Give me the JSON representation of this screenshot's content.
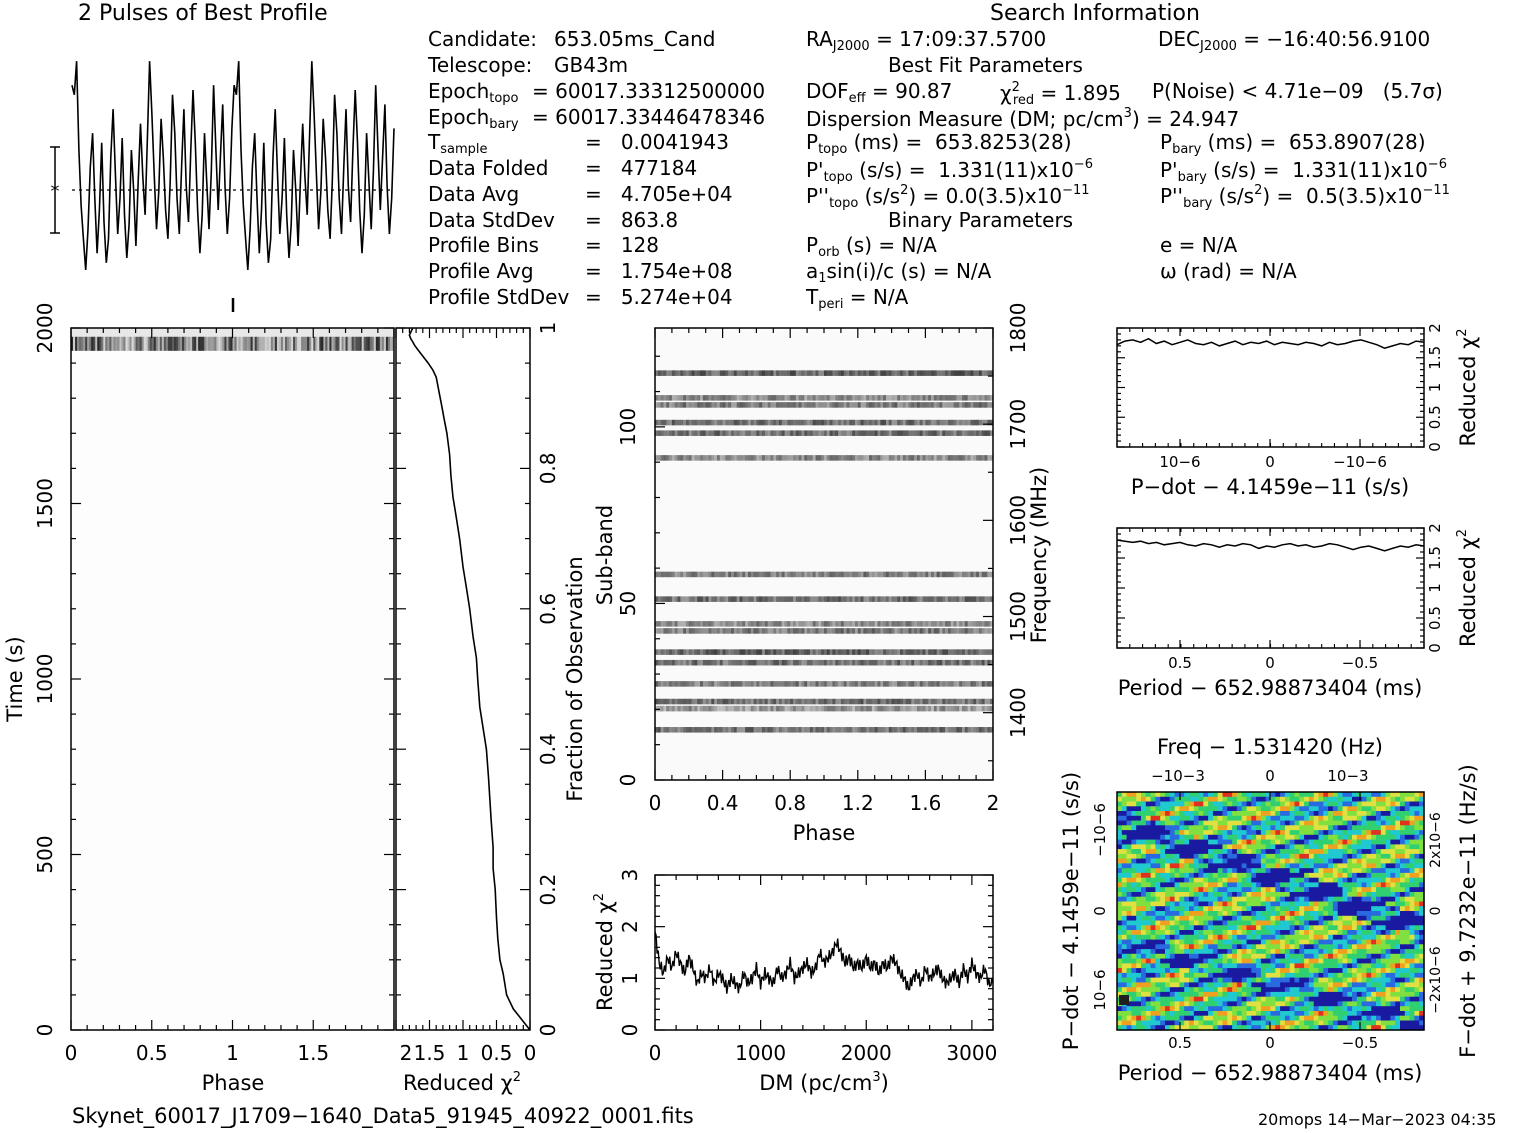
{
  "header": {
    "profile_title": "2 Pulses of Best Profile",
    "search_title": "Search Information"
  },
  "candidate_info": [
    {
      "label": "Candidate:",
      "value": "653.05ms_Cand"
    },
    {
      "label": "Telescope:",
      "value": "GB43m"
    },
    {
      "label": "Epoch",
      "sub": "topo",
      "value": "= 60017.33312500000"
    },
    {
      "label": "Epoch",
      "sub": "bary",
      "value": "= 60017.33446478346"
    },
    {
      "label": "T",
      "sub": "sample",
      "value": "=   0.0041943"
    },
    {
      "label": "Data Folded",
      "value": "=   477184"
    },
    {
      "label": "Data Avg",
      "value": "=   4.705e+04"
    },
    {
      "label": "Data StdDev",
      "value": "=   863.8"
    },
    {
      "label": "Profile Bins",
      "value": "=   128"
    },
    {
      "label": "Profile Avg",
      "value": "=   1.754e+08"
    },
    {
      "label": "Profile StdDev",
      "value": "=   5.274e+04"
    }
  ],
  "search_info": {
    "ra_label": "RA",
    "ra_sub": "J2000",
    "ra_value": "= 17:09:37.5700",
    "dec_label": "DEC",
    "dec_sub": "J2000",
    "dec_value": "= −16:40:56.9100",
    "best_fit_title": "Best Fit Parameters",
    "dof_label": "DOF",
    "dof_sub": "eff",
    "dof_value": "= 90.87",
    "chi_label": "χ",
    "chi_sup": "2",
    "chi_sub": "red",
    "chi_value": "= 1.895",
    "pnoise": "P(Noise) < 4.71e−09   (5.7σ)",
    "dm_text": "Dispersion Measure (DM; pc/cm",
    "dm_sup": "3",
    "dm_value": ") = 24.947",
    "ptopo_label": "P",
    "ptopo_sub": "topo",
    "ptopo_value": " (ms) =  653.8253(28)",
    "pbary_label": "P",
    "pbary_sub": "bary",
    "pbary_value": " (ms) =  653.8907(28)",
    "pdtopo_label": "P'",
    "pdtopo_sub": "topo",
    "pdtopo_value": " (s/s) =  1.331(11)x10",
    "pdtopo_exp": "−6",
    "pdbary_label": "P'",
    "pdbary_sub": "bary",
    "pdbary_value": " (s/s) =  1.331(11)x10",
    "pdbary_exp": "−6",
    "pddtopo_label": "P''",
    "pddtopo_sub": "topo",
    "pddtopo_value": " (s/s",
    "pddtopo_sup": "2",
    "pddtopo_value2": ") = 0.0(3.5)x10",
    "pddtopo_exp": "−11",
    "pddbary_label": "P''",
    "pddbary_sub": "bary",
    "pddbary_value": " (s/s",
    "pddbary_sup": "2",
    "pddbary_value2": ") =  0.5(3.5)x10",
    "pddbary_exp": "−11",
    "binary_title": "Binary Parameters",
    "porb_label": "P",
    "porb_sub": "orb",
    "porb_value": " (s) = N/A",
    "a1_label": "a",
    "a1_sub": "1",
    "a1_value": "sin(i)/c (s) = N/A",
    "tperi_label": "T",
    "tperi_sub": "peri",
    "tperi_value": " = N/A",
    "e_value": "e = N/A",
    "omega_value": "ω (rad) = N/A"
  },
  "footer": {
    "filename": "Skynet_60017_J1709−1640_Data5_91945_40922_0001.fits",
    "stamp": "20mops 14−Mar−2023 04:35"
  },
  "colors": {
    "line": "#000000",
    "background": "#ffffff"
  },
  "chart_data": [
    {
      "type": "line",
      "title": "2 Pulses of Best Profile",
      "x_range": [
        0,
        2
      ],
      "y_errorbar": true,
      "mean_line": "dotted",
      "y": [
        0.82,
        0.78,
        0.92,
        0.55,
        0.32,
        0.18,
        0.05,
        0.22,
        0.48,
        0.62,
        0.35,
        0.12,
        0.3,
        0.58,
        0.25,
        0.08,
        0.18,
        0.52,
        0.72,
        0.45,
        0.2,
        0.35,
        0.6,
        0.28,
        0.1,
        0.24,
        0.55,
        0.38,
        0.15,
        0.42,
        0.66,
        0.44,
        0.28,
        0.6,
        0.92,
        0.7,
        0.45,
        0.22,
        0.38,
        0.68,
        0.52,
        0.3,
        0.18,
        0.42,
        0.78,
        0.62,
        0.35,
        0.2,
        0.48,
        0.72,
        0.4,
        0.25,
        0.55,
        0.8,
        0.58,
        0.3,
        0.12,
        0.28,
        0.62,
        0.42,
        0.22,
        0.46,
        0.82,
        0.55,
        0.3,
        0.52,
        0.74,
        0.4,
        0.2,
        0.35,
        0.64,
        0.82,
        0.78,
        0.92,
        0.55,
        0.32,
        0.18,
        0.05,
        0.22,
        0.48,
        0.62,
        0.35,
        0.12,
        0.3,
        0.58,
        0.25,
        0.08,
        0.18,
        0.52,
        0.72,
        0.45,
        0.2,
        0.35,
        0.6,
        0.28,
        0.1,
        0.24,
        0.55,
        0.38,
        0.15,
        0.42,
        0.66,
        0.44,
        0.28,
        0.6,
        0.92,
        0.7,
        0.45,
        0.22,
        0.38,
        0.68,
        0.52,
        0.3,
        0.18,
        0.42,
        0.78,
        0.62,
        0.35,
        0.2,
        0.48,
        0.72,
        0.4,
        0.25,
        0.55,
        0.8,
        0.58,
        0.3,
        0.12,
        0.28,
        0.62,
        0.42,
        0.22,
        0.46,
        0.82,
        0.55,
        0.3,
        0.52,
        0.74,
        0.4,
        0.2,
        0.35,
        0.64
      ]
    },
    {
      "type": "heatmap",
      "xlabel": "Phase",
      "ylabel": "Time (s)",
      "xlim": [
        0,
        2
      ],
      "ylim": [
        0,
        2000
      ],
      "xticks": [
        "0",
        "0.5",
        "1",
        "1.5"
      ],
      "yticks": [
        "0",
        "500",
        "1000",
        "1500",
        "2000"
      ],
      "bright_band_time_s": [
        1940,
        2000
      ]
    },
    {
      "type": "line",
      "xlabel": "Reduced χ",
      "xlabel_sup": "2",
      "ylabel": "Fraction of Observation",
      "xticks": [
        "2",
        "1.5",
        "1",
        "0.5",
        "0"
      ],
      "yticks": [
        "0",
        "0.2",
        "0.4",
        "0.6",
        "0.8",
        "1"
      ],
      "x_range": [
        2,
        0
      ],
      "chi2": [
        0.0,
        0.25,
        0.35,
        0.4,
        0.45,
        0.48,
        0.5,
        0.52,
        0.55,
        0.55,
        0.58,
        0.6,
        0.62,
        0.65,
        0.7,
        0.75,
        0.78,
        0.8,
        0.85,
        0.9,
        0.95,
        1.0,
        1.05,
        1.1,
        1.15,
        1.18,
        1.2,
        1.24,
        1.28,
        1.32,
        1.36,
        1.4,
        1.45,
        1.52,
        1.6,
        1.68,
        1.72,
        1.75,
        1.78,
        1.8,
        1.75
      ],
      "fraction": [
        0.0,
        0.03,
        0.05,
        0.08,
        0.1,
        0.13,
        0.16,
        0.2,
        0.23,
        0.26,
        0.3,
        0.33,
        0.36,
        0.4,
        0.43,
        0.46,
        0.5,
        0.53,
        0.56,
        0.6,
        0.63,
        0.66,
        0.7,
        0.73,
        0.76,
        0.79,
        0.82,
        0.85,
        0.87,
        0.89,
        0.91,
        0.93,
        0.94,
        0.95,
        0.96,
        0.97,
        0.975,
        0.98,
        0.985,
        0.99,
        1.0
      ]
    },
    {
      "type": "heatmap",
      "xlabel": "Phase",
      "ylabel": "Sub-band",
      "y2label": "Frequency (MHz)",
      "xlim": [
        0,
        2
      ],
      "ylim": [
        0,
        128
      ],
      "xticks": [
        "0",
        "0.4",
        "0.8",
        "1.2",
        "1.6",
        "2"
      ],
      "yticks": [
        "0",
        "50",
        "100"
      ],
      "y2ticks": [
        "1400",
        "1500",
        "1600",
        "1700",
        "1800"
      ],
      "bands": [
        {
          "sub": 14,
          "tone": 0.55
        },
        {
          "sub": 20,
          "tone": 0.4
        },
        {
          "sub": 22,
          "tone": 0.55
        },
        {
          "sub": 27,
          "tone": 0.5
        },
        {
          "sub": 33,
          "tone": 0.55
        },
        {
          "sub": 36,
          "tone": 0.6
        },
        {
          "sub": 42,
          "tone": 0.5
        },
        {
          "sub": 44,
          "tone": 0.45
        },
        {
          "sub": 51,
          "tone": 0.55
        },
        {
          "sub": 58,
          "tone": 0.5
        },
        {
          "sub": 91,
          "tone": 0.45
        },
        {
          "sub": 98,
          "tone": 0.55
        },
        {
          "sub": 101,
          "tone": 0.55
        },
        {
          "sub": 106,
          "tone": 0.5
        },
        {
          "sub": 108,
          "tone": 0.45
        },
        {
          "sub": 115,
          "tone": 0.6
        }
      ]
    },
    {
      "type": "line",
      "xlabel": "DM (pc/cm",
      "xlabel_sup": "3",
      "xlabel_end": ")",
      "ylabel": "Reduced χ",
      "ylabel_sup": "2",
      "xlim": [
        0,
        3200
      ],
      "ylim": [
        0,
        3
      ],
      "xticks": [
        "0",
        "1000",
        "2000",
        "3000"
      ],
      "yticks": [
        "0",
        "1",
        "2",
        "3"
      ],
      "x": [
        0,
        40,
        80,
        120,
        160,
        200,
        240,
        280,
        320,
        360,
        400,
        440,
        480,
        520,
        560,
        600,
        640,
        680,
        720,
        760,
        800,
        840,
        880,
        920,
        960,
        1000,
        1040,
        1080,
        1120,
        1160,
        1200,
        1240,
        1280,
        1320,
        1360,
        1400,
        1440,
        1480,
        1520,
        1560,
        1600,
        1640,
        1680,
        1720,
        1760,
        1800,
        1840,
        1880,
        1920,
        1960,
        2000,
        2040,
        2080,
        2120,
        2160,
        2200,
        2240,
        2280,
        2320,
        2360,
        2400,
        2440,
        2480,
        2520,
        2560,
        2600,
        2640,
        2680,
        2720,
        2760,
        2800,
        2840,
        2880,
        2920,
        2960,
        3000,
        3040,
        3080,
        3120,
        3160,
        3200
      ],
      "y": [
        1.9,
        1.3,
        1.1,
        1.4,
        1.2,
        1.5,
        1.3,
        1.1,
        1.4,
        1.2,
        0.9,
        1.1,
        1.0,
        1.2,
        0.9,
        1.1,
        1.0,
        0.8,
        1.0,
        0.9,
        0.8,
        1.1,
        0.9,
        1.0,
        1.2,
        0.9,
        1.1,
        1.0,
        0.9,
        1.2,
        1.0,
        1.1,
        1.3,
        1.0,
        1.1,
        1.2,
        1.3,
        1.1,
        1.2,
        1.5,
        1.3,
        1.4,
        1.5,
        1.7,
        1.5,
        1.3,
        1.4,
        1.2,
        1.3,
        1.2,
        1.4,
        1.2,
        1.3,
        1.1,
        1.3,
        1.2,
        1.4,
        1.3,
        1.1,
        1.0,
        0.8,
        1.0,
        1.1,
        0.9,
        1.2,
        1.0,
        1.1,
        1.2,
        1.0,
        0.9,
        1.0,
        1.1,
        0.9,
        1.2,
        1.0,
        1.3,
        1.1,
        1.0,
        1.2,
        0.9,
        0.9
      ]
    },
    {
      "type": "line",
      "xlabel": "P−dot − 4.1459e−11 (s/s)",
      "ylabel": "Reduced χ",
      "ylabel_sup": "2",
      "xticks": [
        "10−6",
        "0",
        "−10−6"
      ],
      "yticks": [
        "0",
        "0.5",
        "1",
        "1.5",
        "2"
      ],
      "ylim": [
        0,
        2
      ],
      "y": [
        1.72,
        1.78,
        1.8,
        1.76,
        1.82,
        1.74,
        1.78,
        1.72,
        1.76,
        1.8,
        1.74,
        1.72,
        1.76,
        1.7,
        1.74,
        1.78,
        1.72,
        1.76,
        1.74,
        1.78,
        1.72,
        1.76,
        1.74,
        1.72,
        1.76,
        1.74,
        1.7,
        1.76,
        1.72,
        1.74,
        1.78,
        1.8,
        1.76,
        1.72,
        1.66,
        1.7,
        1.74,
        1.72,
        1.78,
        1.76
      ]
    },
    {
      "type": "line",
      "xlabel": "Period − 652.98873404 (ms)",
      "ylabel": "Reduced χ",
      "ylabel_sup": "2",
      "xticks": [
        "0.5",
        "0",
        "−0.5"
      ],
      "yticks": [
        "0",
        "0.5",
        "1",
        "1.5",
        "2"
      ],
      "ylim": [
        0,
        2
      ],
      "y": [
        1.8,
        1.78,
        1.76,
        1.78,
        1.74,
        1.76,
        1.72,
        1.74,
        1.76,
        1.72,
        1.7,
        1.74,
        1.72,
        1.68,
        1.72,
        1.7,
        1.74,
        1.72,
        1.66,
        1.7,
        1.68,
        1.72,
        1.74,
        1.7,
        1.72,
        1.68,
        1.7,
        1.74,
        1.72,
        1.68,
        1.64,
        1.68,
        1.7,
        1.66,
        1.62,
        1.66,
        1.7,
        1.68,
        1.72,
        1.7
      ]
    },
    {
      "type": "heatmap",
      "title": "Freq − 1.531420 (Hz)",
      "xlabel": "Period − 652.98873404 (ms)",
      "ylabel": "P−dot − 4.1459e−11 (s/s)",
      "y2label": "F−dot + 9.7232e−11 (Hz/s)",
      "xticks": [
        "0.5",
        "0",
        "−0.5"
      ],
      "x2ticks": [
        "−10−3",
        "0",
        "10−3"
      ],
      "yticks": [
        "10−6",
        "0",
        "−10−6"
      ],
      "y2ticks": [
        "−2x10−6",
        "0",
        "2x10−6"
      ],
      "palette": [
        "#1a1aa0",
        "#2a6ae0",
        "#20c8d0",
        "#30d070",
        "#80e040",
        "#e0e040",
        "#f0a020",
        "#e03020"
      ]
    }
  ]
}
